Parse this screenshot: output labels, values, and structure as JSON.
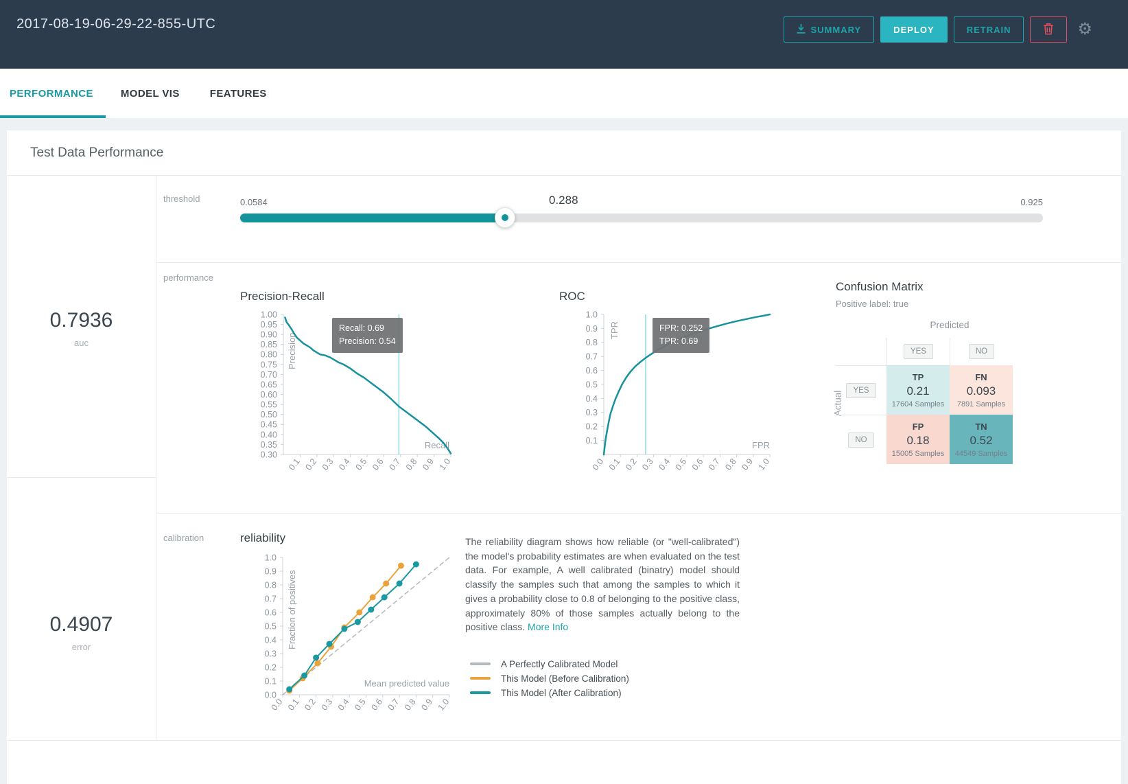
{
  "header": {
    "title": "2017-08-19-06-29-22-855-UTC",
    "summary_label": "SUMMARY",
    "deploy_label": "DEPLOY",
    "retrain_label": "RETRAIN"
  },
  "tabs": [
    {
      "label": "PERFORMANCE"
    },
    {
      "label": "MODEL VIS"
    },
    {
      "label": "FEATURES"
    }
  ],
  "page_title": "Test Data Performance",
  "metrics": {
    "auc": {
      "value": "0.7936",
      "label": "auc"
    },
    "error": {
      "value": "0.4907",
      "label": "error"
    }
  },
  "section_labels": {
    "threshold": "threshold",
    "performance": "performance",
    "calibration": "calibration"
  },
  "threshold": {
    "min": "0.0584",
    "value": "0.288",
    "max": "0.925",
    "fraction": 0.33
  },
  "confusion_matrix": {
    "title": "Confusion Matrix",
    "subtitle": "Positive label: true",
    "col_axis": "Predicted",
    "row_axis": "Actual",
    "col_headers": [
      "YES",
      "NO"
    ],
    "row_headers": [
      "YES",
      "NO"
    ],
    "cells": [
      {
        "label": "TP",
        "value": "0.21",
        "samples": "17604 Samples",
        "bg": "#d5ecec"
      },
      {
        "label": "FN",
        "value": "0.093",
        "samples": "7891 Samples",
        "bg": "#fce5dd"
      },
      {
        "label": "FP",
        "value": "0.18",
        "samples": "15005 Samples",
        "bg": "#f9d8cf"
      },
      {
        "label": "TN",
        "value": "0.52",
        "samples": "44549 Samples",
        "bg": "#68b6bb"
      }
    ]
  },
  "calibration": {
    "description": "The reliability diagram shows how reliable (or \"well-calibrated\") the model's probability estimates are when evaluated on the test data. For example, A well calibrated (binatry) model should classify the samples such that among the samples to which it gives a probability close to 0.8 of belonging to the positive class, approximately 80% of those samples actually belong to the positive class.",
    "more_info": "More Info",
    "legend": [
      {
        "label": "A Perfectly Calibrated Model",
        "color": "#b4b9bd"
      },
      {
        "label": "This Model (Before Calibration)",
        "color": "#eaa23c"
      },
      {
        "label": "This Model (After Calibration)",
        "color": "#1b98a0"
      }
    ]
  },
  "chart_data": [
    {
      "id": "pr",
      "type": "line",
      "title": "Precision-Recall",
      "xlabel": "Recall",
      "ylabel": "Precision",
      "xlim": [
        0,
        1
      ],
      "ylim": [
        0.3,
        1.0
      ],
      "xticks": [
        "0.1",
        "0.2",
        "0.3",
        "0.4",
        "0.5",
        "0.6",
        "0.7",
        "0.8",
        "0.9",
        "1.0"
      ],
      "yticks": [
        "1.00",
        "0.95",
        "0.90",
        "0.85",
        "0.80",
        "0.75",
        "0.70",
        "0.65",
        "0.60",
        "0.55",
        "0.50",
        "0.45",
        "0.40",
        "0.35",
        "0.30"
      ],
      "marker_x": 0.69,
      "tooltip": {
        "lines": [
          "Recall: 0.69",
          "Precision: 0.54"
        ]
      },
      "series": [
        {
          "name": "precision-recall-curve",
          "color": "#17929b",
          "width": 2.5,
          "points": [
            [
              0.01,
              0.985
            ],
            [
              0.02,
              0.96
            ],
            [
              0.03,
              0.95
            ],
            [
              0.05,
              0.925
            ],
            [
              0.06,
              0.91
            ],
            [
              0.08,
              0.885
            ],
            [
              0.1,
              0.87
            ],
            [
              0.12,
              0.855
            ],
            [
              0.14,
              0.845
            ],
            [
              0.16,
              0.835
            ],
            [
              0.18,
              0.82
            ],
            [
              0.2,
              0.81
            ],
            [
              0.22,
              0.8
            ],
            [
              0.25,
              0.795
            ],
            [
              0.28,
              0.785
            ],
            [
              0.3,
              0.775
            ],
            [
              0.33,
              0.76
            ],
            [
              0.36,
              0.75
            ],
            [
              0.4,
              0.73
            ],
            [
              0.44,
              0.705
            ],
            [
              0.48,
              0.685
            ],
            [
              0.52,
              0.66
            ],
            [
              0.56,
              0.635
            ],
            [
              0.6,
              0.61
            ],
            [
              0.64,
              0.58
            ],
            [
              0.69,
              0.54
            ],
            [
              0.73,
              0.515
            ],
            [
              0.77,
              0.49
            ],
            [
              0.81,
              0.465
            ],
            [
              0.85,
              0.44
            ],
            [
              0.89,
              0.41
            ],
            [
              0.93,
              0.38
            ],
            [
              0.96,
              0.355
            ],
            [
              0.985,
              0.325
            ],
            [
              1.0,
              0.305
            ]
          ]
        }
      ]
    },
    {
      "id": "roc",
      "type": "line",
      "title": "ROC",
      "xlabel": "FPR",
      "ylabel": "TPR",
      "xlim": [
        0,
        1
      ],
      "ylim": [
        0,
        1
      ],
      "xticks": [
        "0.0",
        "0.1",
        "0.2",
        "0.3",
        "0.4",
        "0.5",
        "0.6",
        "0.7",
        "0.8",
        "0.9",
        "1.0"
      ],
      "yticks": [
        "1.0",
        "0.9",
        "0.8",
        "0.7",
        "0.6",
        "0.5",
        "0.4",
        "0.3",
        "0.2",
        "0.1"
      ],
      "marker_x": 0.252,
      "tooltip": {
        "lines": [
          "FPR: 0.252",
          "TPR: 0.69"
        ]
      },
      "series": [
        {
          "name": "roc-curve",
          "color": "#17929b",
          "width": 2.5,
          "points": [
            [
              0,
              0
            ],
            [
              0.005,
              0.05
            ],
            [
              0.01,
              0.1
            ],
            [
              0.02,
              0.17
            ],
            [
              0.03,
              0.235
            ],
            [
              0.04,
              0.29
            ],
            [
              0.055,
              0.345
            ],
            [
              0.07,
              0.395
            ],
            [
              0.09,
              0.45
            ],
            [
              0.11,
              0.5
            ],
            [
              0.135,
              0.55
            ],
            [
              0.16,
              0.59
            ],
            [
              0.19,
              0.63
            ],
            [
              0.22,
              0.66
            ],
            [
              0.252,
              0.69
            ],
            [
              0.29,
              0.72
            ],
            [
              0.33,
              0.75
            ],
            [
              0.37,
              0.775
            ],
            [
              0.41,
              0.8
            ],
            [
              0.46,
              0.825
            ],
            [
              0.51,
              0.85
            ],
            [
              0.56,
              0.87
            ],
            [
              0.62,
              0.895
            ],
            [
              0.68,
              0.915
            ],
            [
              0.74,
              0.935
            ],
            [
              0.8,
              0.952
            ],
            [
              0.86,
              0.967
            ],
            [
              0.92,
              0.982
            ],
            [
              0.96,
              0.99
            ],
            [
              1.0,
              1.0
            ]
          ]
        }
      ]
    },
    {
      "id": "reliability",
      "type": "line",
      "title": "reliability",
      "xlabel": "Mean predicted value",
      "ylabel": "Fraction of positives",
      "xlim": [
        0,
        1
      ],
      "ylim": [
        0,
        1
      ],
      "xticks": [
        "0.0",
        "0.1",
        "0.2",
        "0.3",
        "0.4",
        "0.5",
        "0.6",
        "0.7",
        "0.8",
        "0.9",
        "1.0"
      ],
      "yticks": [
        "1.0",
        "0.9",
        "0.8",
        "0.7",
        "0.6",
        "0.5",
        "0.4",
        "0.3",
        "0.2",
        "0.1",
        "0.0"
      ],
      "series": [
        {
          "name": "A Perfectly Calibrated Model",
          "color": "#b4b9bd",
          "dashed": true,
          "width": 1.5,
          "points": [
            [
              0,
              0
            ],
            [
              1,
              1
            ]
          ]
        },
        {
          "name": "This Model (Before Calibration)",
          "color": "#eaa23c",
          "dots": true,
          "width": 2,
          "points": [
            [
              0.04,
              0.03
            ],
            [
              0.12,
              0.12
            ],
            [
              0.21,
              0.23
            ],
            [
              0.29,
              0.35
            ],
            [
              0.37,
              0.49
            ],
            [
              0.46,
              0.6
            ],
            [
              0.54,
              0.71
            ],
            [
              0.62,
              0.81
            ],
            [
              0.71,
              0.94
            ]
          ]
        },
        {
          "name": "This Model (After Calibration)",
          "color": "#1b98a0",
          "dots": true,
          "width": 2,
          "points": [
            [
              0.04,
              0.04
            ],
            [
              0.13,
              0.14
            ],
            [
              0.2,
              0.27
            ],
            [
              0.28,
              0.37
            ],
            [
              0.37,
              0.48
            ],
            [
              0.45,
              0.53
            ],
            [
              0.53,
              0.62
            ],
            [
              0.61,
              0.71
            ],
            [
              0.7,
              0.81
            ],
            [
              0.8,
              0.95
            ]
          ]
        }
      ]
    }
  ],
  "colors": {
    "accent_teal": "#1fa3ab",
    "deploy_fill": "#2bb5c0",
    "danger_red": "#e34f5f",
    "header_bg": "#2d3c4d",
    "marker_cyan": "#8ed9e6",
    "curve_teal": "#17929b"
  }
}
